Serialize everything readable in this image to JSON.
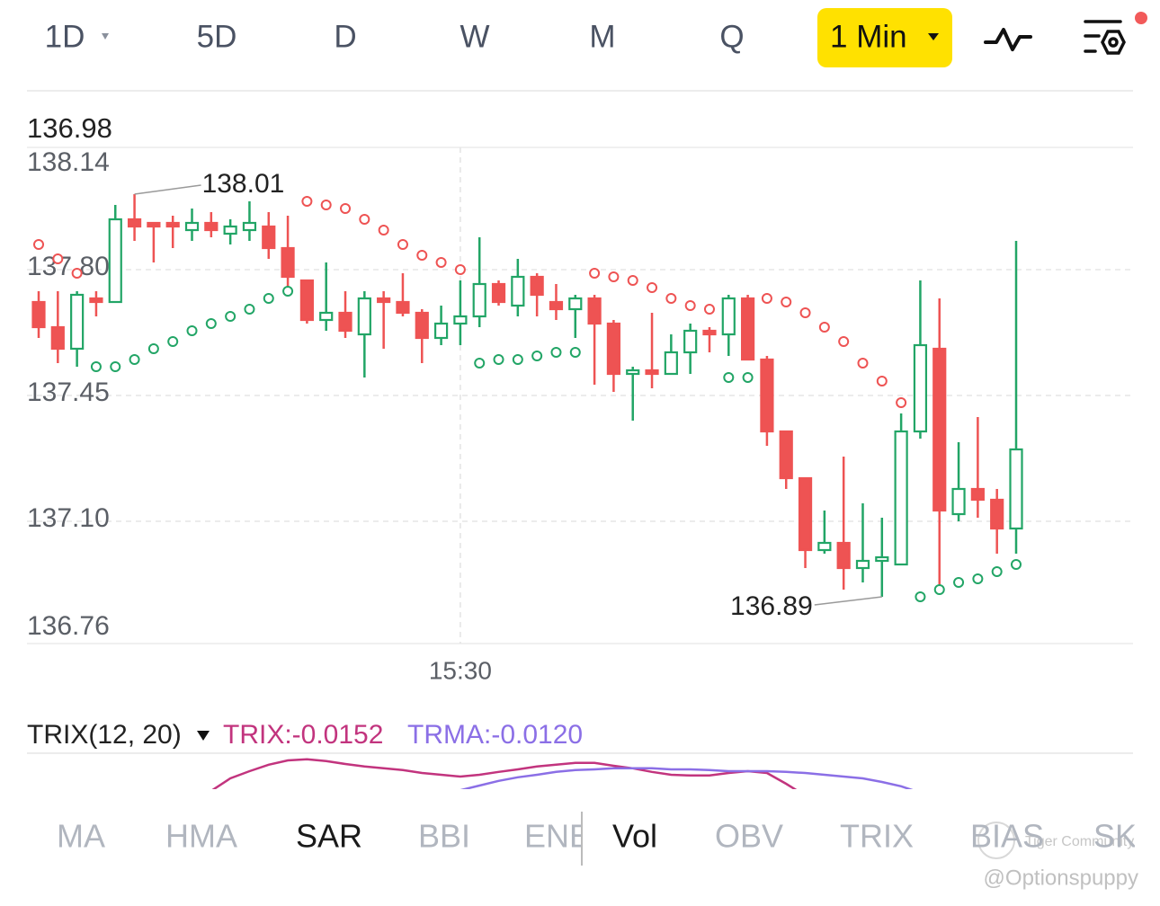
{
  "top_tabs": {
    "items": [
      "1D",
      "5D",
      "D",
      "W",
      "M",
      "Q",
      "1 Min"
    ],
    "active": 6
  },
  "chart_data": [
    {
      "type": "candlestick",
      "overlay_label": "136.98",
      "categories": [
        null,
        null,
        null,
        null,
        null,
        null,
        null,
        null,
        null,
        null,
        null,
        null,
        null,
        null,
        null,
        null,
        null,
        null,
        null,
        null,
        null,
        null,
        "15:30",
        null,
        null,
        null,
        null,
        null,
        null,
        null,
        null,
        null,
        null,
        null,
        null,
        null,
        null,
        null,
        null,
        null,
        null,
        null,
        null,
        null,
        null,
        null,
        null,
        null,
        null,
        null,
        null,
        null
      ],
      "open": [
        137.71,
        137.64,
        137.58,
        137.72,
        137.71,
        137.94,
        137.93,
        137.93,
        137.91,
        137.93,
        137.9,
        137.91,
        137.92,
        137.86,
        137.77,
        137.66,
        137.68,
        137.62,
        137.72,
        137.71,
        137.68,
        137.61,
        137.65,
        137.67,
        137.76,
        137.7,
        137.78,
        137.71,
        137.69,
        137.72,
        137.65,
        137.51,
        137.52,
        137.51,
        137.57,
        137.63,
        137.62,
        137.72,
        137.55,
        137.35,
        137.22,
        137.02,
        137.04,
        136.97,
        136.99,
        136.98,
        137.35,
        137.58,
        137.12,
        137.19,
        137.16,
        137.08
      ],
      "high": [
        137.74,
        137.74,
        137.74,
        137.74,
        137.98,
        138.01,
        137.93,
        137.95,
        137.97,
        137.96,
        137.94,
        137.99,
        137.96,
        137.95,
        137.77,
        137.82,
        137.74,
        137.74,
        137.74,
        137.79,
        137.69,
        137.7,
        137.77,
        137.89,
        137.77,
        137.83,
        137.79,
        137.76,
        137.73,
        137.73,
        137.66,
        137.53,
        137.68,
        137.62,
        137.65,
        137.64,
        137.73,
        137.73,
        137.56,
        137.35,
        137.22,
        137.13,
        137.28,
        137.15,
        137.11,
        137.4,
        137.77,
        137.72,
        137.32,
        137.39,
        137.19,
        137.88
      ],
      "low": [
        137.61,
        137.54,
        137.53,
        137.67,
        137.71,
        137.88,
        137.82,
        137.86,
        137.88,
        137.89,
        137.87,
        137.88,
        137.83,
        137.75,
        137.65,
        137.63,
        137.61,
        137.5,
        137.58,
        137.67,
        137.54,
        137.59,
        137.59,
        137.64,
        137.7,
        137.67,
        137.67,
        137.66,
        137.61,
        137.48,
        137.46,
        137.38,
        137.47,
        137.51,
        137.51,
        137.57,
        137.56,
        137.55,
        137.31,
        137.19,
        136.97,
        137.01,
        136.91,
        136.93,
        136.89,
        136.98,
        137.33,
        136.92,
        137.1,
        137.11,
        137.01,
        137.01
      ],
      "close": [
        137.64,
        137.58,
        137.73,
        137.71,
        137.94,
        137.92,
        137.92,
        137.92,
        137.93,
        137.91,
        137.92,
        137.93,
        137.86,
        137.78,
        137.66,
        137.68,
        137.63,
        137.72,
        137.71,
        137.68,
        137.61,
        137.65,
        137.67,
        137.76,
        137.71,
        137.78,
        137.73,
        137.69,
        137.72,
        137.65,
        137.51,
        137.52,
        137.51,
        137.57,
        137.63,
        137.62,
        137.72,
        137.55,
        137.35,
        137.22,
        137.02,
        137.04,
        136.97,
        136.99,
        137.0,
        137.35,
        137.59,
        137.13,
        137.19,
        137.16,
        137.08,
        137.3
      ],
      "sar": [
        137.87,
        137.83,
        137.79,
        137.53,
        137.53,
        137.55,
        137.58,
        137.6,
        137.63,
        137.65,
        137.67,
        137.69,
        137.72,
        137.74,
        137.99,
        137.98,
        137.97,
        137.94,
        137.91,
        137.87,
        137.84,
        137.82,
        137.8,
        137.54,
        137.55,
        137.55,
        137.56,
        137.57,
        137.57,
        137.79,
        137.78,
        137.77,
        137.75,
        137.72,
        137.7,
        137.69,
        137.5,
        137.5,
        137.72,
        137.71,
        137.68,
        137.64,
        137.6,
        137.54,
        137.49,
        137.43,
        136.89,
        136.91,
        136.93,
        136.94,
        136.96,
        136.98
      ],
      "up_color": "#22a566",
      "down_color": "#ee5353",
      "ylim": [
        136.76,
        138.14
      ],
      "yticks": [
        138.14,
        {
          "value": 137.8,
          "label": "137.80"
        },
        137.45,
        {
          "value": 137.1,
          "label": "137.10"
        },
        136.76
      ],
      "grid": true
    },
    {
      "type": "line",
      "title": "TRIX(12, 20)",
      "series": [
        {
          "name": "TRIX:-0.0152",
          "color": "#c2347e",
          "values": [
            null,
            null,
            null,
            null,
            null,
            null,
            null,
            null,
            null,
            -0.0005,
            0.003,
            0.005,
            0.0068,
            0.008,
            0.0083,
            0.0078,
            0.007,
            0.0063,
            0.0058,
            0.0053,
            0.0045,
            0.004,
            0.0035,
            0.004,
            0.0048,
            0.0055,
            0.0063,
            0.0068,
            0.0073,
            0.0073,
            0.0065,
            0.0058,
            0.0048,
            0.004,
            0.0038,
            0.0038,
            0.0045,
            0.005,
            0.0045,
            0.0015,
            -0.0018,
            null,
            null,
            null,
            null,
            null,
            null,
            null,
            null,
            null,
            null,
            null
          ]
        },
        {
          "name": "TRMA:-0.0120",
          "color": "#8b6fe6",
          "values": [
            null,
            null,
            null,
            null,
            null,
            null,
            null,
            null,
            null,
            null,
            null,
            null,
            null,
            null,
            null,
            null,
            null,
            null,
            null,
            null,
            null,
            null,
            -0.0003,
            0.001,
            0.0023,
            0.0033,
            0.004,
            0.0048,
            0.0053,
            0.0055,
            0.0058,
            0.0058,
            0.0058,
            0.0055,
            0.0055,
            0.0053,
            0.005,
            0.005,
            0.005,
            0.0048,
            0.0045,
            0.004,
            0.0035,
            0.003,
            0.002,
            0.0008,
            -0.001,
            null,
            null,
            null,
            null,
            null
          ]
        }
      ],
      "ylim": [
        -0.02,
        0.01
      ]
    }
  ],
  "bottom_tabs": {
    "items": [
      "MA",
      "HMA",
      "SAR",
      "BBI",
      "ENE",
      "Vol",
      "OBV",
      "TRIX",
      "BIAS",
      "SK"
    ],
    "active": [
      2,
      5
    ]
  },
  "watermark": [
    "Tiger Community",
    "@Optionspuppy"
  ]
}
